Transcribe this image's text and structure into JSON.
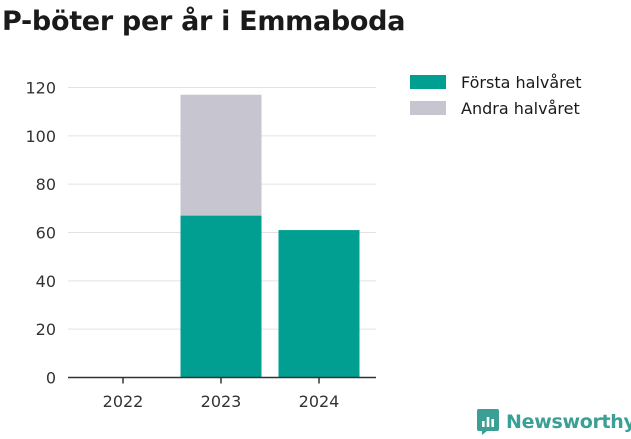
{
  "title": "P-böter per år i Emmaboda",
  "brand": {
    "name": "Newsworthy",
    "color": "#3a9f94",
    "icon": "newsworthy-logo-icon"
  },
  "chart_data": {
    "type": "bar",
    "stacked": true,
    "categories": [
      "2022",
      "2023",
      "2024"
    ],
    "series": [
      {
        "name": "Första halvåret",
        "color": "#009f91",
        "values": [
          0,
          67,
          61
        ]
      },
      {
        "name": "Andra halvåret",
        "color": "#c6c5d0",
        "values": [
          0,
          50,
          0
        ]
      }
    ],
    "ylim": [
      0,
      120
    ],
    "yticks": [
      0,
      20,
      40,
      60,
      80,
      100,
      120
    ],
    "ytick_labels": [
      "0",
      "20",
      "40",
      "60",
      "80",
      "100",
      "120"
    ],
    "grid": true,
    "legend_position": "top-right"
  }
}
